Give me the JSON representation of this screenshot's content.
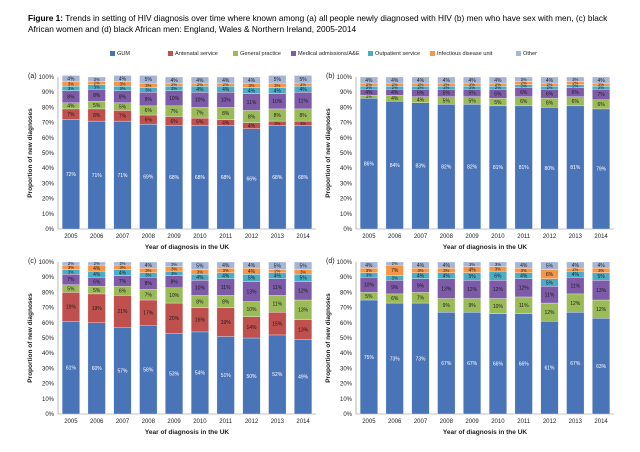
{
  "figure": {
    "label": "Figure 1:",
    "caption": "Trends in setting of HIV diagnosis over time where known among (a) all people newly diagnosed with HIV (b) men who have sex with men, (c) black African women and (d) black African men: England, Wales & Northern Ireland, 2005-2014"
  },
  "legend": [
    {
      "name": "GUM",
      "color": "#4a74b8"
    },
    {
      "name": "Antenatal service",
      "color": "#c0504d"
    },
    {
      "name": "General practice",
      "color": "#9bbb59"
    },
    {
      "name": "Medical admissions/A&E",
      "color": "#7e5ba8"
    },
    {
      "name": "Outpatient service",
      "color": "#4bacc6"
    },
    {
      "name": "Infectious disease unit",
      "color": "#f79646"
    },
    {
      "name": "Other",
      "color": "#a5b5d6"
    }
  ],
  "chart_data": [
    {
      "panel": "(a)",
      "type": "bar",
      "stacked": true,
      "categories": [
        "2005",
        "2006",
        "2007",
        "2008",
        "2009",
        "2010",
        "2011",
        "2012",
        "2013",
        "2014"
      ],
      "xlabel": "Year of diagnosis in the UK",
      "ylabel": "Proportion of new diagnoses",
      "ylim": [
        0,
        100
      ],
      "yticks": [
        "0%",
        "10%",
        "20%",
        "30%",
        "40%",
        "50%",
        "60%",
        "70%",
        "80%",
        "90%",
        "100%"
      ],
      "series": [
        {
          "name": "GUM",
          "values": [
            72,
            71,
            71,
            69,
            68,
            68,
            68,
            66,
            68,
            68
          ]
        },
        {
          "name": "Antenatal service",
          "values": [
            7,
            8,
            7,
            6,
            6,
            5,
            4,
            4,
            3,
            3
          ]
        },
        {
          "name": "General practice",
          "values": [
            4,
            5,
            5,
            6,
            7,
            7,
            8,
            8,
            8,
            8
          ]
        },
        {
          "name": "Medical admissions/A&E",
          "values": [
            8,
            8,
            8,
            9,
            10,
            10,
            10,
            11,
            10,
            11
          ]
        },
        {
          "name": "Outpatient service",
          "values": [
            3,
            3,
            3,
            3,
            3,
            4,
            4,
            4,
            4,
            4
          ]
        },
        {
          "name": "Infectious disease unit",
          "values": [
            3,
            2,
            3,
            3,
            2,
            2,
            2,
            3,
            3,
            2
          ]
        },
        {
          "name": "Other",
          "values": [
            4,
            3,
            4,
            5,
            4,
            4,
            4,
            4,
            5,
            5
          ]
        }
      ],
      "labels": [
        [
          "72%",
          "71%",
          "71%",
          "69%",
          "68%",
          "68%",
          "68%",
          "66%",
          "68%",
          "68%"
        ],
        [
          "7%",
          "8%",
          "7%",
          "6%",
          "6%",
          "5%",
          "4%",
          "4%",
          "3%",
          "3%"
        ],
        [
          "4%",
          "5%",
          "5%",
          "6%",
          "7%",
          "7%",
          "8%",
          "8%",
          "8%",
          "8%"
        ],
        [
          "8%",
          "8%",
          "8%",
          "9%",
          "10%",
          "10%",
          "10%",
          "11%",
          "10%",
          "11%"
        ],
        [
          "3%",
          "3%",
          "3%",
          "3%",
          "3%",
          "4%",
          "4%",
          "4%",
          "4%",
          "4%"
        ],
        [
          "3%",
          "2%",
          "3%",
          "3%",
          "2%",
          "2%",
          "2%",
          "3%",
          "3%",
          "2%"
        ],
        [
          "4%",
          "3%",
          "4%",
          "5%",
          "4%",
          "4%",
          "4%",
          "4%",
          "5%",
          "5%"
        ]
      ]
    },
    {
      "panel": "(b)",
      "type": "bar",
      "stacked": true,
      "categories": [
        "2005",
        "2006",
        "2007",
        "2008",
        "2009",
        "2010",
        "2011",
        "2012",
        "2013",
        "2014"
      ],
      "xlabel": "Year of diagnosis in the UK",
      "ylabel": "Proportion of new diagnoses",
      "ylim": [
        0,
        100
      ],
      "yticks": [
        "0%",
        "10%",
        "20%",
        "30%",
        "40%",
        "50%",
        "60%",
        "70%",
        "80%",
        "90%",
        "100%"
      ],
      "series": [
        {
          "name": "GUM",
          "values": [
            86,
            84,
            83,
            82,
            82,
            81,
            81,
            80,
            81,
            79
          ]
        },
        {
          "name": "Antenatal service",
          "values": [
            0,
            0,
            0,
            0,
            0,
            0,
            0,
            0,
            0,
            0
          ]
        },
        {
          "name": "General practice",
          "values": [
            2,
            4,
            4,
            5,
            5,
            5,
            6,
            6,
            6,
            6
          ]
        },
        {
          "name": "Medical admissions/A&E",
          "values": [
            4,
            4,
            5,
            5,
            5,
            6,
            6,
            6,
            6,
            7
          ]
        },
        {
          "name": "Outpatient service",
          "values": [
            2,
            2,
            2,
            2,
            2,
            2,
            2,
            2,
            2,
            2
          ]
        },
        {
          "name": "Infectious disease unit",
          "values": [
            2,
            2,
            2,
            2,
            2,
            2,
            2,
            2,
            2,
            2
          ]
        },
        {
          "name": "Other",
          "values": [
            4,
            4,
            4,
            4,
            4,
            4,
            3,
            4,
            3,
            4
          ]
        }
      ],
      "labels": [
        [
          "86%",
          "84%",
          "83%",
          "82%",
          "82%",
          "81%",
          "81%",
          "80%",
          "81%",
          "79%"
        ],
        [
          "",
          "",
          "",
          "",
          "",
          "",
          "",
          "",
          "",
          ""
        ],
        [
          "2%",
          "4%",
          "4%",
          "5%",
          "5%",
          "5%",
          "6%",
          "6%",
          "6%",
          "6%"
        ],
        [
          "4%",
          "4%",
          "5%",
          "5%",
          "5%",
          "6%",
          "6%",
          "6%",
          "6%",
          "7%"
        ],
        [
          "2%",
          "2%",
          "2%",
          "2%",
          "2%",
          "2%",
          "2%",
          "2%",
          "2%",
          "2%"
        ],
        [
          "2%",
          "2%",
          "2%",
          "2%",
          "2%",
          "2%",
          "2%",
          "2%",
          "2%",
          "2%"
        ],
        [
          "4%",
          "4%",
          "4%",
          "4%",
          "4%",
          "4%",
          "3%",
          "4%",
          "3%",
          "4%"
        ]
      ]
    },
    {
      "panel": "(c)",
      "type": "bar",
      "stacked": true,
      "categories": [
        "2005",
        "2006",
        "2007",
        "2008",
        "2009",
        "2010",
        "2011",
        "2012",
        "2013",
        "2014"
      ],
      "xlabel": "Year of diagnosis in the UK",
      "ylabel": "Proportion of new diagnoses",
      "ylim": [
        0,
        100
      ],
      "yticks": [
        "0%",
        "10%",
        "20%",
        "30%",
        "40%",
        "50%",
        "60%",
        "70%",
        "80%",
        "90%",
        "100%"
      ],
      "series": [
        {
          "name": "GUM",
          "values": [
            61,
            60,
            57,
            58,
            53,
            54,
            51,
            50,
            52,
            49
          ]
        },
        {
          "name": "Antenatal service",
          "values": [
            19,
            19,
            21,
            17,
            20,
            16,
            19,
            14,
            15,
            13
          ]
        },
        {
          "name": "General practice",
          "values": [
            5,
            5,
            6,
            7,
            10,
            8,
            8,
            10,
            11,
            13
          ]
        },
        {
          "name": "Medical admissions/A&E",
          "values": [
            7,
            6,
            7,
            8,
            8,
            10,
            11,
            13,
            11,
            12
          ]
        },
        {
          "name": "Outpatient service",
          "values": [
            3,
            4,
            4,
            3,
            3,
            4,
            4,
            5,
            4,
            5
          ]
        },
        {
          "name": "Infectious disease unit",
          "values": [
            3,
            4,
            3,
            3,
            3,
            3,
            3,
            4,
            2,
            3
          ]
        },
        {
          "name": "Other",
          "values": [
            2,
            2,
            2,
            4,
            3,
            5,
            4,
            4,
            5,
            5
          ]
        }
      ],
      "labels": [
        [
          "61%",
          "60%",
          "57%",
          "58%",
          "53%",
          "54%",
          "51%",
          "50%",
          "52%",
          "49%"
        ],
        [
          "19%",
          "19%",
          "21%",
          "17%",
          "20%",
          "16%",
          "19%",
          "14%",
          "15%",
          "13%"
        ],
        [
          "5%",
          "5%",
          "6%",
          "7%",
          "10%",
          "8%",
          "8%",
          "10%",
          "11%",
          "13%"
        ],
        [
          "7%",
          "6%",
          "7%",
          "8%",
          "8%",
          "10%",
          "11%",
          "13%",
          "11%",
          "12%"
        ],
        [
          "3%",
          "4%",
          "4%",
          "3%",
          "3%",
          "4%",
          "4%",
          "5%",
          "4%",
          "5%"
        ],
        [
          "3%",
          "4%",
          "3%",
          "3%",
          "3%",
          "3%",
          "3%",
          "4%",
          "2%",
          "3%"
        ],
        [
          "2%",
          "2%",
          "2%",
          "4%",
          "3%",
          "5%",
          "4%",
          "4%",
          "5%",
          "5%"
        ]
      ]
    },
    {
      "panel": "(d)",
      "type": "bar",
      "stacked": true,
      "categories": [
        "2005",
        "2006",
        "2007",
        "2008",
        "2009",
        "2010",
        "2011",
        "2012",
        "2013",
        "2014"
      ],
      "xlabel": "Year of diagnosis in the UK",
      "ylabel": "Proportion of new diagnoses",
      "ylim": [
        0,
        100
      ],
      "yticks": [
        "0%",
        "10%",
        "20%",
        "30%",
        "40%",
        "50%",
        "60%",
        "70%",
        "80%",
        "90%",
        "100%"
      ],
      "series": [
        {
          "name": "GUM",
          "values": [
            75,
            73,
            73,
            67,
            67,
            66,
            66,
            61,
            67,
            63
          ]
        },
        {
          "name": "Antenatal service",
          "values": [
            0,
            0,
            0,
            0,
            0,
            0,
            0,
            0,
            0,
            0
          ]
        },
        {
          "name": "General practice",
          "values": [
            5,
            6,
            7,
            9,
            9,
            10,
            11,
            12,
            12,
            12
          ]
        },
        {
          "name": "Medical admissions/A&E",
          "values": [
            10,
            9,
            9,
            13,
            12,
            12,
            12,
            11,
            11,
            13
          ]
        },
        {
          "name": "Outpatient service",
          "values": [
            3,
            3,
            4,
            4,
            5,
            6,
            4,
            5,
            4,
            5
          ]
        },
        {
          "name": "Infectious disease unit",
          "values": [
            3,
            7,
            3,
            3,
            4,
            3,
            3,
            6,
            2,
            3
          ]
        },
        {
          "name": "Other",
          "values": [
            4,
            2,
            4,
            4,
            3,
            3,
            4,
            5,
            4,
            4
          ]
        }
      ],
      "labels": [
        [
          "75%",
          "73%",
          "73%",
          "67%",
          "67%",
          "66%",
          "66%",
          "61%",
          "67%",
          "63%"
        ],
        [
          "",
          "",
          "",
          "",
          "",
          "",
          "",
          "",
          "",
          ""
        ],
        [
          "5%",
          "6%",
          "7%",
          "9%",
          "9%",
          "10%",
          "11%",
          "12%",
          "12%",
          "12%"
        ],
        [
          "10%",
          "9%",
          "9%",
          "13%",
          "12%",
          "12%",
          "12%",
          "11%",
          "11%",
          "13%"
        ],
        [
          "3%",
          "3%",
          "4%",
          "4%",
          "5%",
          "6%",
          "4%",
          "5%",
          "4%",
          "5%"
        ],
        [
          "3%",
          "7%",
          "3%",
          "3%",
          "4%",
          "3%",
          "3%",
          "6%",
          "2%",
          "3%"
        ],
        [
          "4%",
          "2%",
          "4%",
          "4%",
          "3%",
          "3%",
          "4%",
          "5%",
          "4%",
          "4%"
        ]
      ]
    }
  ]
}
